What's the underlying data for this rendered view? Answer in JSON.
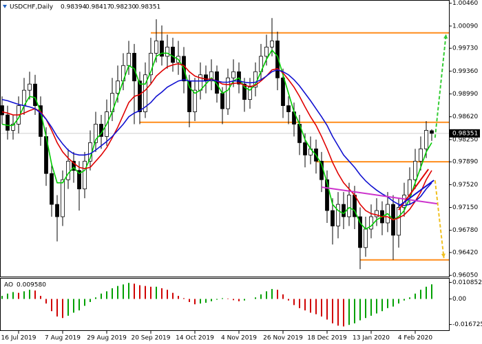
{
  "chart_data": {
    "type": "candlestick",
    "header": {
      "symbol": "USDCHF,Daily",
      "ohlc_labels": [
        "0.98394",
        "0.98417",
        "0.98230",
        "0.98351"
      ]
    },
    "categories": [
      null,
      null,
      null,
      "16 Jul 2019",
      null,
      null,
      null,
      null,
      null,
      null,
      null,
      "7 Aug 2019",
      null,
      null,
      null,
      null,
      null,
      null,
      null,
      "29 Aug 2019",
      null,
      null,
      null,
      null,
      null,
      null,
      null,
      "20 Sep 2019",
      null,
      null,
      null,
      null,
      null,
      null,
      null,
      "14 Oct 2019",
      null,
      null,
      null,
      null,
      null,
      null,
      null,
      "4 Nov 2019",
      null,
      null,
      null,
      null,
      null,
      null,
      null,
      "26 Nov 2019",
      null,
      null,
      null,
      null,
      null,
      null,
      null,
      "18 Dec 2019",
      null,
      null,
      null,
      null,
      null,
      null,
      null,
      "13 Jan 2020",
      null,
      null,
      null,
      null,
      null,
      null,
      null,
      "4 Feb 2020",
      null,
      null,
      null
    ],
    "candles": {
      "open": [
        0.988,
        0.9865,
        0.984,
        0.985,
        0.988,
        0.9905,
        0.9915,
        0.988,
        0.983,
        0.977,
        0.972,
        0.97,
        0.976,
        0.979,
        0.9775,
        0.9745,
        0.979,
        0.982,
        0.985,
        0.983,
        0.987,
        0.99,
        0.992,
        0.9945,
        0.9965,
        0.992,
        0.987,
        0.993,
        0.9965,
        0.9985,
        0.996,
        0.9975,
        0.995,
        0.996,
        0.992,
        0.987,
        0.9905,
        0.993,
        0.992,
        0.9935,
        0.99,
        0.9875,
        0.9925,
        0.9935,
        0.9915,
        0.989,
        0.991,
        0.9935,
        0.996,
        0.9975,
        0.9985,
        0.9925,
        0.988,
        0.987,
        0.985,
        0.982,
        0.98,
        0.981,
        0.979,
        0.976,
        0.971,
        0.9685,
        0.972,
        0.97,
        0.9735,
        0.97,
        0.965,
        0.968,
        0.97,
        0.971,
        0.969,
        0.972,
        0.967,
        0.9715,
        0.9735,
        0.976,
        0.979,
        0.981,
        0.98394
      ],
      "high": [
        0.9895,
        0.988,
        0.9865,
        0.9895,
        0.9925,
        0.9935,
        0.993,
        0.9895,
        0.9845,
        0.9785,
        0.9735,
        0.9775,
        0.981,
        0.9805,
        0.979,
        0.9805,
        0.984,
        0.987,
        0.9865,
        0.989,
        0.9925,
        0.9945,
        0.9965,
        0.9985,
        0.998,
        0.9935,
        0.995,
        0.999,
        1.002,
        1.001,
        0.9995,
        0.999,
        0.9985,
        0.9975,
        0.993,
        0.9925,
        0.995,
        0.9945,
        0.9955,
        0.9945,
        0.991,
        0.994,
        0.9955,
        0.995,
        0.9925,
        0.9925,
        0.995,
        0.998,
        0.9995,
        1.0022,
        1.0,
        0.994,
        0.9895,
        0.9885,
        0.9865,
        0.9835,
        0.983,
        0.9825,
        0.9805,
        0.9775,
        0.973,
        0.974,
        0.974,
        0.9755,
        0.975,
        0.9715,
        0.97,
        0.972,
        0.973,
        0.9725,
        0.974,
        0.9735,
        0.973,
        0.9755,
        0.978,
        0.981,
        0.983,
        0.9855,
        0.98417
      ],
      "low": [
        0.985,
        0.9825,
        0.9825,
        0.9835,
        0.9865,
        0.989,
        0.9865,
        0.9815,
        0.975,
        0.97,
        0.966,
        0.9685,
        0.9745,
        0.9755,
        0.971,
        0.973,
        0.9775,
        0.9805,
        0.981,
        0.9815,
        0.9855,
        0.9885,
        0.9905,
        0.993,
        0.985,
        0.985,
        0.986,
        0.9915,
        0.995,
        0.9945,
        0.994,
        0.9935,
        0.993,
        0.99,
        0.9845,
        0.9855,
        0.989,
        0.99,
        0.9905,
        0.9885,
        0.985,
        0.9865,
        0.991,
        0.99,
        0.987,
        0.9875,
        0.9895,
        0.992,
        0.9945,
        0.996,
        0.9905,
        0.986,
        0.985,
        0.983,
        0.98,
        0.978,
        0.9785,
        0.977,
        0.974,
        0.969,
        0.9655,
        0.9665,
        0.968,
        0.9685,
        0.968,
        0.9615,
        0.9635,
        0.9665,
        0.9685,
        0.967,
        0.9675,
        0.963,
        0.965,
        0.97,
        0.972,
        0.9745,
        0.9775,
        0.9795,
        0.9823
      ],
      "close": [
        0.9865,
        0.984,
        0.985,
        0.988,
        0.9905,
        0.9915,
        0.988,
        0.983,
        0.977,
        0.972,
        0.97,
        0.976,
        0.979,
        0.9775,
        0.9745,
        0.979,
        0.982,
        0.985,
        0.983,
        0.987,
        0.99,
        0.992,
        0.9945,
        0.9965,
        0.992,
        0.987,
        0.993,
        0.9965,
        0.9985,
        0.996,
        0.9975,
        0.995,
        0.996,
        0.992,
        0.987,
        0.9905,
        0.993,
        0.992,
        0.9935,
        0.99,
        0.9875,
        0.9925,
        0.9935,
        0.9915,
        0.989,
        0.991,
        0.9935,
        0.996,
        0.9975,
        0.9985,
        0.9925,
        0.988,
        0.987,
        0.985,
        0.982,
        0.98,
        0.981,
        0.979,
        0.976,
        0.971,
        0.9685,
        0.972,
        0.97,
        0.9735,
        0.97,
        0.965,
        0.968,
        0.97,
        0.971,
        0.969,
        0.972,
        0.967,
        0.9715,
        0.9735,
        0.976,
        0.979,
        0.981,
        0.984,
        0.98351
      ]
    },
    "up_fill": "#ffffff",
    "down_fill": "#000000",
    "candle_color": "#000000",
    "moving_averages": [
      {
        "color": "#00cc00",
        "values": [
          0.985,
          0.9848,
          0.9848,
          0.986,
          0.988,
          0.9895,
          0.9893,
          0.987,
          0.983,
          0.9785,
          0.9755,
          0.9755,
          0.977,
          0.978,
          0.977,
          0.9775,
          0.9795,
          0.9825,
          0.9835,
          0.985,
          0.987,
          0.9895,
          0.992,
          0.9945,
          0.994,
          0.9915,
          0.9915,
          0.9935,
          0.996,
          0.9965,
          0.9965,
          0.996,
          0.9955,
          0.994,
          0.991,
          0.99,
          0.9905,
          0.9915,
          0.9925,
          0.9915,
          0.99,
          0.9905,
          0.992,
          0.9925,
          0.991,
          0.9905,
          0.9915,
          0.9935,
          0.9955,
          0.997,
          0.996,
          0.993,
          0.99,
          0.987,
          0.985,
          0.9825,
          0.981,
          0.98,
          0.9785,
          0.9755,
          0.972,
          0.971,
          0.9705,
          0.9715,
          0.971,
          0.969,
          0.968,
          0.9685,
          0.9695,
          0.97,
          0.9705,
          0.9695,
          0.97,
          0.971,
          0.973,
          0.9755,
          0.978,
          0.9805,
          0.982
        ]
      },
      {
        "color": "#e00000",
        "values": [
          0.987,
          0.9868,
          0.9865,
          0.9865,
          0.9868,
          0.9872,
          0.9875,
          0.987,
          0.9858,
          0.984,
          0.982,
          0.9805,
          0.9795,
          0.9787,
          0.978,
          0.9778,
          0.978,
          0.979,
          0.98,
          0.9812,
          0.9828,
          0.9845,
          0.9865,
          0.9885,
          0.9895,
          0.9898,
          0.9905,
          0.9915,
          0.9928,
          0.9936,
          0.9943,
          0.9946,
          0.9948,
          0.9945,
          0.9935,
          0.9928,
          0.9925,
          0.9923,
          0.9923,
          0.992,
          0.9915,
          0.9914,
          0.9916,
          0.9917,
          0.9913,
          0.9911,
          0.9913,
          0.992,
          0.9928,
          0.9938,
          0.994,
          0.9933,
          0.9922,
          0.991,
          0.9895,
          0.9878,
          0.9862,
          0.9848,
          0.983,
          0.981,
          0.9788,
          0.977,
          0.9755,
          0.9745,
          0.9735,
          0.972,
          0.971,
          0.9705,
          0.9703,
          0.97,
          0.97,
          0.9695,
          0.9698,
          0.9703,
          0.9712,
          0.9725,
          0.974,
          0.976,
          0.9775
        ]
      },
      {
        "color": "#1010d0",
        "values": [
          0.989,
          0.9888,
          0.9885,
          0.9882,
          0.988,
          0.9878,
          0.9875,
          0.9868,
          0.9858,
          0.9845,
          0.983,
          0.9818,
          0.9808,
          0.9802,
          0.98,
          0.98,
          0.9802,
          0.9808,
          0.9815,
          0.9822,
          0.983,
          0.984,
          0.985,
          0.9862,
          0.9868,
          0.9872,
          0.9878,
          0.9885,
          0.9895,
          0.9902,
          0.991,
          0.9915,
          0.992,
          0.9922,
          0.992,
          0.992,
          0.992,
          0.992,
          0.9922,
          0.992,
          0.9918,
          0.9918,
          0.992,
          0.992,
          0.9918,
          0.9917,
          0.9918,
          0.9922,
          0.9928,
          0.9935,
          0.9938,
          0.9935,
          0.993,
          0.9922,
          0.9912,
          0.99,
          0.9888,
          0.9875,
          0.9862,
          0.9848,
          0.983,
          0.9815,
          0.98,
          0.979,
          0.978,
          0.9768,
          0.9758,
          0.975,
          0.9743,
          0.9737,
          0.9732,
          0.9725,
          0.972,
          0.9718,
          0.972,
          0.9725,
          0.9733,
          0.9745,
          0.9755
        ]
      }
    ],
    "levels": [
      {
        "value": 0.9998,
        "from": 27,
        "color": "#ff8c1a"
      },
      {
        "value": 0.9853,
        "from": 25,
        "color": "#ff8c1a"
      },
      {
        "value": 0.9789,
        "from": 57,
        "color": "#ff8c1a"
      },
      {
        "value": 0.963,
        "from": 65,
        "color": "#ff8c1a"
      }
    ],
    "annotations": [
      {
        "color": "#cc33cc",
        "x": [
          58,
          79
        ],
        "y": [
          0.9748,
          0.9721
        ]
      },
      {
        "color": "#e00000",
        "x": [
          72,
          77.4
        ],
        "y": [
          0.9711,
          0.9777
        ]
      },
      {
        "color": "#1010d0",
        "x": [
          72,
          78.4
        ],
        "y": [
          0.9717,
          0.9759
        ]
      },
      {
        "color": "#33cc33",
        "dash": true,
        "arrow": true,
        "x": [
          78.6,
          80.6
        ],
        "y": [
          0.9828,
          0.9996
        ]
      },
      {
        "color": "#f0c020",
        "dash": true,
        "arrow": true,
        "x": [
          78.6,
          80.2
        ],
        "y": [
          0.9759,
          0.9633
        ]
      }
    ],
    "ylim": [
      0.9603,
      1.0049
    ],
    "yticks": [
      {
        "value": 1.0046,
        "label": "1.00460"
      },
      {
        "value": 1.0009,
        "label": "1.00090"
      },
      {
        "value": 0.9973,
        "label": "0.99730"
      },
      {
        "value": 0.9936,
        "label": "0.99360"
      },
      {
        "value": 0.9899,
        "label": "0.98990"
      },
      {
        "value": 0.9862,
        "label": "0.98620"
      },
      {
        "value": 0.9825,
        "label": "0.98250"
      },
      {
        "value": 0.9789,
        "label": "0.97890"
      },
      {
        "value": 0.9752,
        "label": "0.97520"
      },
      {
        "value": 0.9715,
        "label": "0.97150"
      },
      {
        "value": 0.9678,
        "label": "0.96780"
      },
      {
        "value": 0.9642,
        "label": "0.96420"
      },
      {
        "value": 0.9605,
        "label": "0.96050"
      }
    ],
    "ao": {
      "name": "AO",
      "current": {
        "value": 0.00958,
        "label": "0.009580"
      },
      "up_color": "#00a000",
      "down_color": "#d00000",
      "ylim": [
        -0.0205,
        0.0133
      ],
      "yticks": [
        0.010852,
        {
          "value": 0,
          "label": "0.00"
        },
        -0.016725
      ],
      "values": [
        0.002,
        0.0035,
        0.0045,
        0.004,
        0.005,
        0.006,
        0.0055,
        0.002,
        -0.003,
        -0.008,
        -0.0115,
        -0.0125,
        -0.011,
        -0.009,
        -0.0075,
        -0.0045,
        -0.002,
        0.001,
        0.0035,
        0.005,
        0.007,
        0.0085,
        0.0095,
        0.0105,
        0.01,
        0.009,
        0.0085,
        0.008,
        0.008,
        0.007,
        0.006,
        0.004,
        0.002,
        0.0005,
        -0.002,
        -0.0035,
        -0.003,
        -0.0025,
        -0.0015,
        -0.0005,
        0.0005,
        0.0003,
        -0.0008,
        -0.0015,
        -0.001,
        0,
        0.001,
        0.003,
        0.005,
        0.0065,
        0.006,
        0.003,
        -0.001,
        -0.004,
        -0.006,
        -0.0075,
        -0.009,
        -0.01,
        -0.0115,
        -0.0135,
        -0.016,
        -0.0175,
        -0.018,
        -0.017,
        -0.016,
        -0.014,
        -0.0125,
        -0.011,
        -0.0095,
        -0.008,
        -0.006,
        -0.005,
        -0.003,
        -0.001,
        0.001,
        0.0035,
        0.006,
        0.008,
        0.00958
      ]
    }
  }
}
